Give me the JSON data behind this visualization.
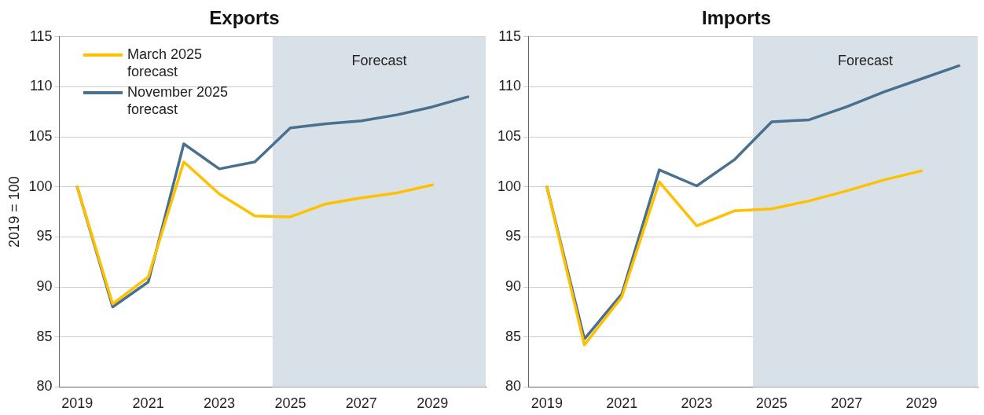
{
  "chart_data": [
    {
      "type": "line",
      "title": "Exports",
      "ylabel": "2019 = 100",
      "x": [
        2019,
        2020,
        2021,
        2022,
        2023,
        2024,
        2025,
        2026,
        2027,
        2028,
        2029,
        2030
      ],
      "xlim": [
        2018.5,
        2030.5
      ],
      "xticks": [
        2019,
        2021,
        2023,
        2025,
        2027,
        2029
      ],
      "ylim": [
        80,
        115
      ],
      "yticks": [
        80,
        85,
        90,
        95,
        100,
        105,
        110,
        115
      ],
      "grid": "y",
      "legend": "top left",
      "marker": "none",
      "line_style": "solid",
      "bands": [
        {
          "axis": "x",
          "from": 2024.5,
          "to": 2030.5,
          "label": "Forecast",
          "color": "#d9e1e8"
        }
      ],
      "series": [
        {
          "name": "March 2025 forecast",
          "color": "#ffc000",
          "values": [
            100,
            88.3,
            91,
            102.5,
            99.3,
            97.1,
            97.0,
            98.3,
            98.9,
            99.4,
            100.2,
            null
          ]
        },
        {
          "name": "November 2025 forecast",
          "color": "#4a7090",
          "values": [
            100,
            88,
            90.5,
            104.3,
            101.8,
            102.5,
            105.9,
            106.3,
            106.6,
            107.2,
            108.0,
            109.0
          ]
        }
      ]
    },
    {
      "type": "line",
      "title": "Imports",
      "x": [
        2019,
        2020,
        2021,
        2022,
        2023,
        2024,
        2025,
        2026,
        2027,
        2028,
        2029,
        2030
      ],
      "xlim": [
        2018.5,
        2030.5
      ],
      "xticks": [
        2019,
        2021,
        2023,
        2025,
        2027,
        2029
      ],
      "ylim": [
        80,
        115
      ],
      "yticks": [
        80,
        85,
        90,
        95,
        100,
        105,
        110,
        115
      ],
      "grid": "y",
      "marker": "none",
      "line_style": "solid",
      "bands": [
        {
          "axis": "x",
          "from": 2024.5,
          "to": 2030.5,
          "label": "Forecast",
          "color": "#d9e1e8"
        }
      ],
      "series": [
        {
          "color": "#ffc000",
          "values": [
            100,
            84.2,
            89,
            100.5,
            96.1,
            97.6,
            97.8,
            98.6,
            99.6,
            100.7,
            101.6,
            null
          ]
        },
        {
          "color": "#4a7090",
          "values": [
            100,
            84.8,
            89.3,
            101.7,
            100.1,
            102.7,
            106.5,
            106.7,
            108.0,
            109.5,
            110.8,
            112.1
          ]
        }
      ]
    }
  ]
}
